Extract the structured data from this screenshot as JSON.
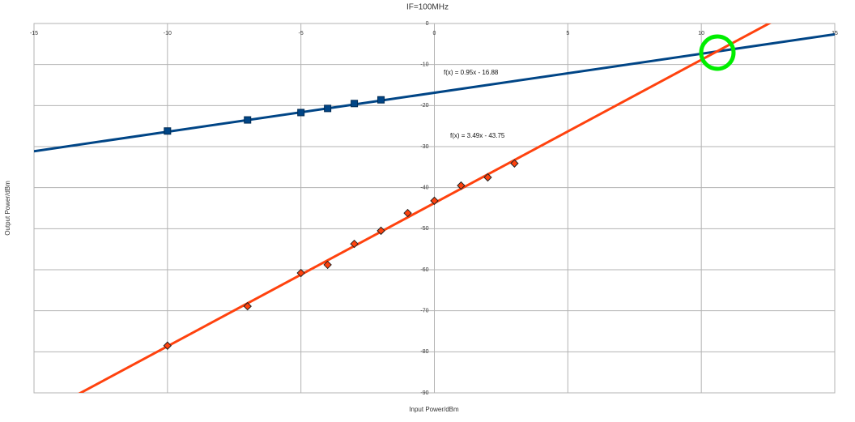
{
  "chart_data": {
    "type": "scatter",
    "title": "IF=100MHz",
    "x_label": "Input Power/dBm",
    "y_label": "Output Power/dBm",
    "xlim": [
      -15,
      15
    ],
    "xticks": [
      -15,
      -10,
      -5,
      0,
      5,
      10,
      15
    ],
    "ylim": [
      -90,
      0
    ],
    "yticks": [
      -90,
      -80,
      -70,
      -60,
      -50,
      -40,
      -30,
      -20,
      -10,
      0
    ],
    "grid": true,
    "series": [
      {
        "color": "#004586",
        "marker": "square",
        "x": [
          -10,
          -7,
          -5,
          -4,
          -3,
          -2
        ],
        "values": [
          -26.2,
          -23.5,
          -21.7,
          -20.7,
          -19.5,
          -18.6
        ],
        "trendline": {
          "slope": 0.95,
          "intercept": -16.88,
          "label": "f(x) = 0.95x - 16.88"
        }
      },
      {
        "color": "#ff420e",
        "marker": "diamond",
        "x": [
          -10,
          -7,
          -5,
          -4,
          -3,
          -2,
          -1,
          0,
          1,
          2,
          3
        ],
        "values": [
          -78.5,
          -68.9,
          -60.8,
          -58.8,
          -53.7,
          -50.5,
          -46.2,
          -43.2,
          -39.5,
          -37.5,
          -34.1
        ],
        "trendline": {
          "slope": 3.49,
          "intercept": -43.75,
          "label": "f(x) = 3.49x - 43.75"
        }
      }
    ]
  }
}
